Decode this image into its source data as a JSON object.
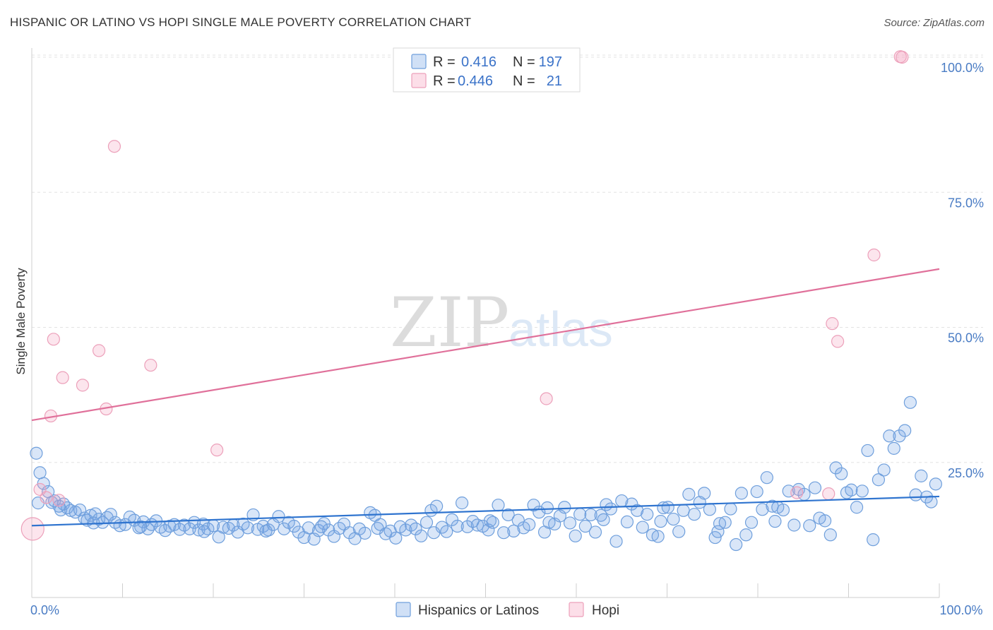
{
  "title": "HISPANIC OR LATINO VS HOPI SINGLE MALE POVERTY CORRELATION CHART",
  "source": "Source: ZipAtlas.com",
  "watermark": {
    "zip": "ZIP",
    "atlas": "atlas"
  },
  "colors": {
    "blue_fill": "rgba(120,165,230,0.28)",
    "blue_stroke": "#6f9fdc",
    "blue_line": "#2f74cf",
    "pink_fill": "rgba(245,160,190,0.28)",
    "pink_stroke": "#eca0ba",
    "pink_line": "#e0709a",
    "tick_text": "#4a7cc4",
    "grid": "#e3e3e3"
  },
  "legend": {
    "rows": [
      {
        "r_label": "R =",
        "r_value": "0.416",
        "n_label": "N =",
        "n_value": "197",
        "series": "blue"
      },
      {
        "r_label": "R =",
        "r_value": "0.446",
        "n_label": "N =",
        "n_value": "21",
        "series": "pink"
      }
    ]
  },
  "bottom_legend": [
    "Hispanics or Latinos",
    "Hopi"
  ],
  "chart_data": {
    "type": "scatter",
    "title": "HISPANIC OR LATINO VS HOPI SINGLE MALE POVERTY CORRELATION CHART",
    "xlabel": "",
    "ylabel": "Single Male Poverty",
    "xlim": [
      0,
      100
    ],
    "ylim": [
      0,
      105
    ],
    "x_tick_labels": [
      {
        "value": 0,
        "label": "0.0%"
      },
      {
        "value": 100,
        "label": "100.0%"
      }
    ],
    "x_minor_ticks": [
      0,
      10,
      20,
      30,
      40,
      50,
      60,
      70,
      80,
      90,
      100
    ],
    "y_ticks": [
      {
        "value": 25,
        "label": "25.0%"
      },
      {
        "value": 50,
        "label": "50.0%"
      },
      {
        "value": 75,
        "label": "75.0%"
      },
      {
        "value": 100,
        "label": "100.0%"
      }
    ],
    "grid": true,
    "series": [
      {
        "name": "Hispanics or Latinos",
        "color": "blue",
        "trend": {
          "x": [
            0,
            100
          ],
          "y": [
            13.3,
            18.7
          ]
        },
        "points": [
          [
            0.5,
            26.7
          ],
          [
            0.9,
            23.1
          ],
          [
            1.3,
            21.1
          ],
          [
            1.8,
            19.6
          ],
          [
            2.2,
            17.6
          ],
          [
            2.5,
            17.9
          ],
          [
            3.2,
            16.2
          ],
          [
            3.5,
            17.3
          ],
          [
            3.9,
            16.6
          ],
          [
            4.3,
            16.1
          ],
          [
            4.8,
            15.8
          ],
          [
            5.3,
            16.2
          ],
          [
            5.8,
            14.7
          ],
          [
            6.1,
            14.3
          ],
          [
            6.5,
            15.2
          ],
          [
            7.0,
            15.5
          ],
          [
            7.4,
            14.5
          ],
          [
            7.8,
            13.9
          ],
          [
            8.3,
            14.8
          ],
          [
            8.7,
            15.4
          ],
          [
            9.2,
            13.9
          ],
          [
            9.7,
            13.3
          ],
          [
            10.3,
            13.5
          ],
          [
            10.8,
            14.9
          ],
          [
            11.3,
            14.3
          ],
          [
            11.8,
            12.9
          ],
          [
            12.3,
            14.0
          ],
          [
            12.8,
            12.7
          ],
          [
            13.2,
            13.5
          ],
          [
            13.7,
            14.2
          ],
          [
            14.2,
            13.0
          ],
          [
            14.7,
            12.4
          ],
          [
            15.2,
            13.2
          ],
          [
            15.7,
            13.5
          ],
          [
            16.3,
            12.6
          ],
          [
            16.8,
            13.4
          ],
          [
            17.4,
            12.7
          ],
          [
            17.9,
            13.9
          ],
          [
            18.4,
            12.5
          ],
          [
            18.9,
            13.6
          ],
          [
            19.4,
            12.7
          ],
          [
            20.0,
            13.3
          ],
          [
            20.6,
            11.2
          ],
          [
            21.1,
            13.0
          ],
          [
            21.7,
            12.8
          ],
          [
            22.2,
            13.4
          ],
          [
            22.7,
            12.1
          ],
          [
            23.3,
            13.6
          ],
          [
            23.8,
            12.9
          ],
          [
            24.4,
            15.3
          ],
          [
            24.9,
            12.6
          ],
          [
            25.5,
            13.2
          ],
          [
            26.1,
            12.5
          ],
          [
            26.6,
            13.5
          ],
          [
            27.2,
            15.0
          ],
          [
            27.8,
            12.7
          ],
          [
            28.3,
            13.9
          ],
          [
            28.9,
            13.2
          ],
          [
            29.4,
            12.1
          ],
          [
            30.0,
            11.1
          ],
          [
            30.5,
            12.9
          ],
          [
            31.1,
            10.8
          ],
          [
            31.6,
            12.4
          ],
          [
            32.2,
            13.7
          ],
          [
            32.7,
            12.5
          ],
          [
            33.3,
            11.3
          ],
          [
            33.9,
            12.8
          ],
          [
            34.4,
            13.6
          ],
          [
            35.0,
            12.0
          ],
          [
            35.6,
            10.9
          ],
          [
            36.1,
            12.7
          ],
          [
            36.7,
            11.9
          ],
          [
            37.3,
            15.7
          ],
          [
            37.8,
            15.2
          ],
          [
            38.4,
            13.5
          ],
          [
            39.0,
            11.8
          ],
          [
            39.5,
            12.3
          ],
          [
            40.1,
            11.0
          ],
          [
            40.6,
            13.1
          ],
          [
            41.2,
            12.5
          ],
          [
            41.8,
            13.4
          ],
          [
            42.3,
            12.7
          ],
          [
            42.9,
            11.4
          ],
          [
            43.5,
            13.9
          ],
          [
            44.0,
            16.1
          ],
          [
            44.6,
            16.9
          ],
          [
            45.2,
            13.0
          ],
          [
            45.7,
            12.2
          ],
          [
            46.3,
            14.4
          ],
          [
            46.9,
            13.2
          ],
          [
            47.4,
            17.5
          ],
          [
            48.0,
            13.1
          ],
          [
            48.6,
            14.1
          ],
          [
            49.1,
            13.4
          ],
          [
            49.7,
            13.2
          ],
          [
            50.3,
            12.5
          ],
          [
            50.8,
            13.9
          ],
          [
            51.4,
            17.1
          ],
          [
            52.0,
            12.0
          ],
          [
            52.5,
            15.3
          ],
          [
            53.1,
            12.3
          ],
          [
            53.6,
            14.3
          ],
          [
            54.2,
            12.9
          ],
          [
            54.8,
            13.5
          ],
          [
            55.3,
            17.1
          ],
          [
            55.9,
            15.8
          ],
          [
            56.5,
            12.1
          ],
          [
            57.0,
            13.9
          ],
          [
            57.6,
            13.6
          ],
          [
            58.2,
            15.1
          ],
          [
            58.7,
            16.7
          ],
          [
            59.3,
            13.8
          ],
          [
            59.9,
            11.4
          ],
          [
            60.4,
            15.4
          ],
          [
            61.0,
            13.2
          ],
          [
            61.6,
            15.3
          ],
          [
            62.1,
            12.1
          ],
          [
            62.7,
            15.2
          ],
          [
            63.3,
            17.2
          ],
          [
            63.8,
            16.4
          ],
          [
            64.4,
            10.4
          ],
          [
            65.0,
            17.9
          ],
          [
            65.6,
            14.0
          ],
          [
            66.1,
            17.3
          ],
          [
            66.7,
            16.1
          ],
          [
            67.3,
            13.0
          ],
          [
            67.8,
            15.4
          ],
          [
            68.4,
            11.6
          ],
          [
            69.0,
            11.3
          ],
          [
            69.6,
            16.6
          ],
          [
            70.1,
            16.7
          ],
          [
            70.7,
            14.5
          ],
          [
            71.3,
            12.2
          ],
          [
            71.8,
            16.1
          ],
          [
            72.4,
            19.1
          ],
          [
            73.0,
            15.4
          ],
          [
            73.6,
            17.6
          ],
          [
            74.1,
            19.3
          ],
          [
            74.7,
            16.3
          ],
          [
            75.3,
            11.1
          ],
          [
            75.8,
            13.7
          ],
          [
            76.4,
            13.9
          ],
          [
            77.0,
            16.4
          ],
          [
            77.6,
            9.8
          ],
          [
            78.2,
            19.3
          ],
          [
            78.7,
            11.6
          ],
          [
            79.3,
            13.9
          ],
          [
            79.9,
            19.6
          ],
          [
            80.5,
            16.3
          ],
          [
            81.0,
            22.2
          ],
          [
            81.6,
            16.9
          ],
          [
            82.2,
            16.7
          ],
          [
            82.8,
            16.2
          ],
          [
            83.4,
            19.7
          ],
          [
            84.0,
            13.4
          ],
          [
            84.5,
            20.0
          ],
          [
            85.1,
            19.1
          ],
          [
            85.7,
            13.3
          ],
          [
            86.3,
            20.3
          ],
          [
            86.8,
            14.7
          ],
          [
            87.4,
            14.2
          ],
          [
            88.0,
            11.6
          ],
          [
            88.6,
            24.0
          ],
          [
            89.2,
            22.9
          ],
          [
            89.8,
            19.4
          ],
          [
            90.3,
            19.9
          ],
          [
            90.9,
            16.7
          ],
          [
            91.5,
            19.7
          ],
          [
            92.1,
            27.2
          ],
          [
            92.7,
            10.7
          ],
          [
            93.3,
            21.8
          ],
          [
            93.9,
            23.6
          ],
          [
            94.5,
            29.9
          ],
          [
            95.0,
            27.6
          ],
          [
            95.6,
            29.9
          ],
          [
            96.2,
            30.9
          ],
          [
            96.8,
            36.1
          ],
          [
            97.4,
            19.0
          ],
          [
            98.0,
            22.5
          ],
          [
            98.6,
            18.6
          ],
          [
            99.1,
            17.7
          ],
          [
            99.6,
            21.0
          ],
          [
            0.7,
            17.5
          ],
          [
            3.0,
            16.9
          ],
          [
            6.8,
            13.8
          ],
          [
            12.0,
            13.1
          ],
          [
            19.0,
            12.2
          ],
          [
            25.8,
            12.3
          ],
          [
            31.9,
            13.1
          ],
          [
            38.1,
            12.8
          ],
          [
            44.3,
            12.0
          ],
          [
            50.5,
            14.2
          ],
          [
            56.8,
            16.6
          ],
          [
            63.0,
            14.4
          ],
          [
            69.3,
            14.1
          ],
          [
            75.6,
            12.2
          ],
          [
            81.9,
            14.1
          ]
        ]
      },
      {
        "name": "Hopi",
        "color": "pink",
        "trend": {
          "x": [
            0,
            100
          ],
          "y": [
            32.8,
            60.8
          ]
        },
        "points": [
          [
            0.1,
            12.7
          ],
          [
            0.9,
            20.0
          ],
          [
            1.6,
            18.5
          ],
          [
            2.1,
            33.6
          ],
          [
            2.4,
            47.8
          ],
          [
            3.0,
            18.0
          ],
          [
            3.4,
            40.7
          ],
          [
            5.6,
            39.3
          ],
          [
            7.4,
            45.7
          ],
          [
            8.2,
            34.9
          ],
          [
            9.1,
            83.5
          ],
          [
            13.1,
            43.0
          ],
          [
            20.4,
            27.3
          ],
          [
            56.7,
            36.8
          ],
          [
            84.3,
            19.4
          ],
          [
            87.8,
            19.2
          ],
          [
            88.2,
            50.7
          ],
          [
            88.8,
            47.4
          ],
          [
            92.8,
            63.4
          ],
          [
            95.7,
            100.1
          ],
          [
            95.9,
            100.0
          ]
        ]
      }
    ]
  }
}
